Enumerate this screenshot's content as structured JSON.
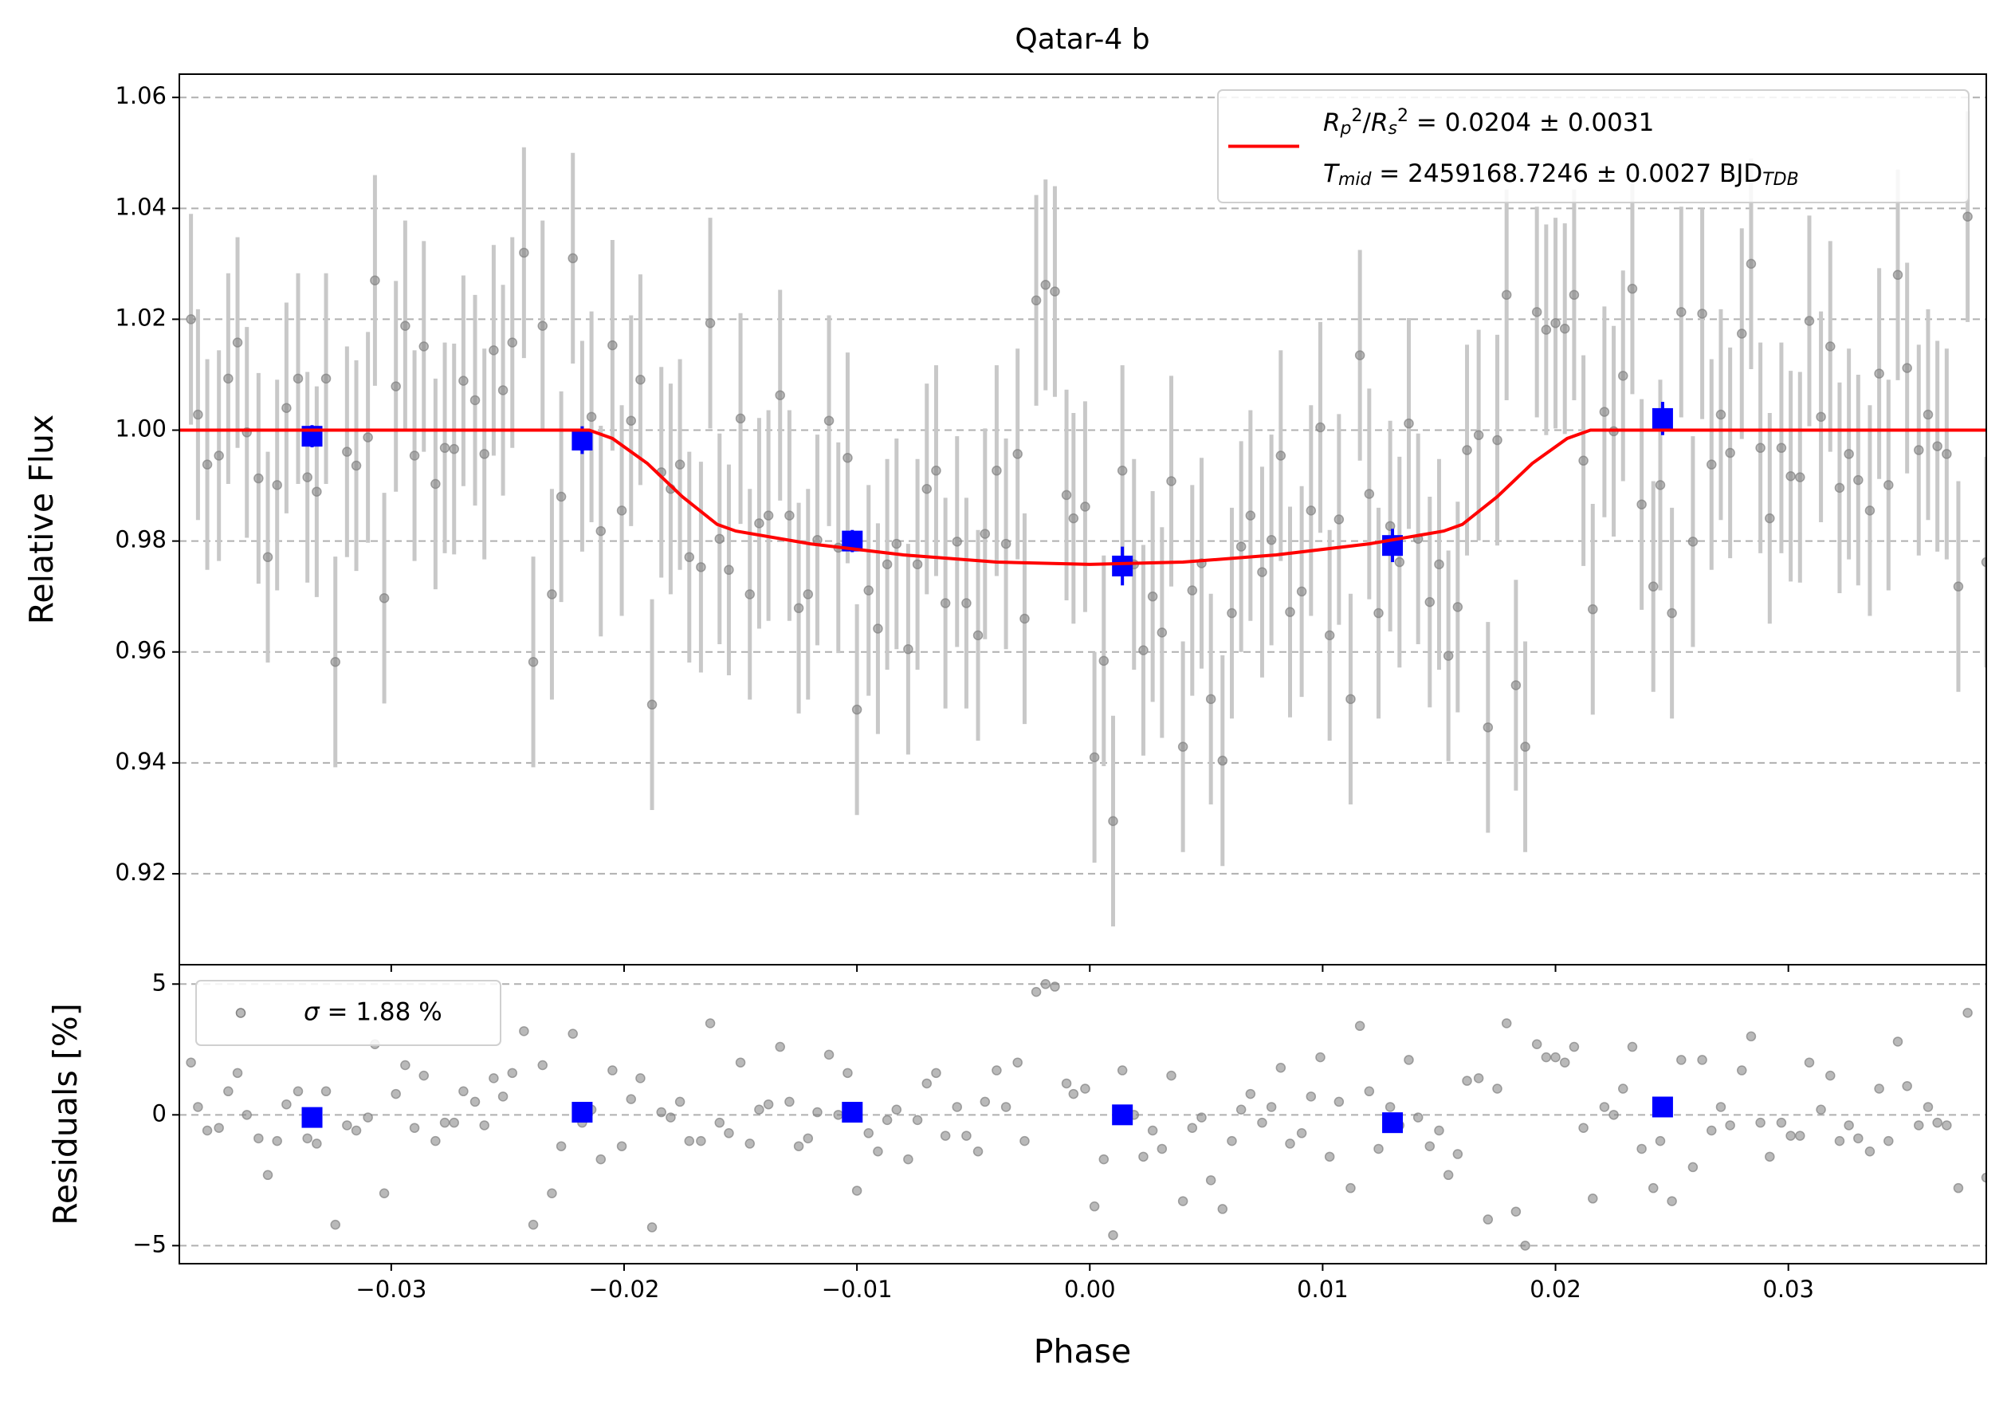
{
  "chart_data": {
    "type": "scatter",
    "title": "Qatar-4 b",
    "xlabel": "Phase",
    "xlim": [
      -0.0391,
      0.0385
    ],
    "xticks": [
      {
        "value": -0.03,
        "label": "−0.03"
      },
      {
        "value": -0.02,
        "label": "−0.02"
      },
      {
        "value": -0.01,
        "label": "−0.01"
      },
      {
        "value": 0,
        "label": "0.00"
      },
      0.01,
      0.02,
      0.03
    ],
    "grid": true,
    "panels": [
      {
        "ylabel": "Relative Flux",
        "ylim": [
          0.9036,
          1.0642
        ],
        "yticks": [
          0.92,
          0.94,
          0.96,
          0.98,
          {
            "value": 1,
            "label": "1.00"
          },
          1.02,
          1.04,
          1.06
        ],
        "legend": "upper right",
        "series": [
          {
            "marker": "circle",
            "color": "#808080",
            "error": 0.019,
            "x": [
              -0.0386,
              -0.0383,
              -0.0379,
              -0.0374,
              -0.037,
              -0.0366,
              -0.0362,
              -0.0357,
              -0.0353,
              -0.0349,
              -0.0345,
              -0.034,
              -0.0336,
              -0.0332,
              -0.0328,
              -0.0324,
              -0.0319,
              -0.0315,
              -0.031,
              -0.0307,
              -0.0303,
              -0.0298,
              -0.0294,
              -0.029,
              -0.0286,
              -0.0281,
              -0.0277,
              -0.0273,
              -0.0269,
              -0.0264,
              -0.026,
              -0.0256,
              -0.0252,
              -0.0248,
              -0.0243,
              -0.0239,
              -0.0235,
              -0.0231,
              -0.0227,
              -0.0222,
              -0.0218,
              -0.0214,
              -0.021,
              -0.0205,
              -0.0201,
              -0.0197,
              -0.0193,
              -0.0188,
              -0.0184,
              -0.018,
              -0.0176,
              -0.0172,
              -0.0167,
              -0.0163,
              -0.0159,
              -0.0155,
              -0.015,
              -0.0146,
              -0.0142,
              -0.0138,
              -0.0133,
              -0.0129,
              -0.0125,
              -0.0121,
              -0.0117,
              -0.0112,
              -0.0108,
              -0.0104,
              -0.01,
              -0.0095,
              -0.0091,
              -0.0087,
              -0.0083,
              -0.0078,
              -0.0074,
              -0.007,
              -0.0066,
              -0.0062,
              -0.0057,
              -0.0053,
              -0.0048,
              -0.0045,
              -0.004,
              -0.0036,
              -0.0031,
              -0.0028,
              -0.0023,
              -0.0019,
              -0.0015,
              -0.001,
              -0.0007,
              -0.0002,
              0.0002,
              0.0006,
              0.001,
              0.0014,
              0.0019,
              0.0023,
              0.0027,
              0.0031,
              0.0035,
              0.004,
              0.0044,
              0.0048,
              0.0052,
              0.0057,
              0.0061,
              0.0065,
              0.0069,
              0.0074,
              0.0078,
              0.0082,
              0.0086,
              0.0091,
              0.0095,
              0.0099,
              0.0103,
              0.0107,
              0.0112,
              0.0116,
              0.012,
              0.0124,
              0.0129,
              0.0133,
              0.0137,
              0.0141,
              0.0146,
              0.015,
              0.0154,
              0.0158,
              0.0162,
              0.0167,
              0.0171,
              0.0175,
              0.0179,
              0.0183,
              0.0187,
              0.0192,
              0.0196,
              0.02,
              0.0204,
              0.0208,
              0.0212,
              0.0216,
              0.0221,
              0.0225,
              0.0229,
              0.0233,
              0.0237,
              0.0242,
              0.0245,
              0.025,
              0.0254,
              0.0259,
              0.0263,
              0.0267,
              0.0271,
              0.0275,
              0.028,
              0.0284,
              0.0288,
              0.0292,
              0.0297,
              0.0301,
              0.0305,
              0.0309,
              0.0314,
              0.0318,
              0.0322,
              0.0326,
              0.033,
              0.0335,
              0.0339,
              0.0343,
              0.0347,
              0.0351,
              0.0356,
              0.036,
              0.0364,
              0.0368,
              0.0373,
              0.0377,
              0.0385
            ],
            "values": [
              1.02,
              1.0028,
              0.9938,
              0.9954,
              1.0093,
              1.0158,
              0.9996,
              0.9913,
              0.9771,
              0.9901,
              1.004,
              1.0093,
              0.9915,
              0.9889,
              1.0093,
              0.9582,
              0.9961,
              0.9936,
              0.9987,
              1.027,
              0.9697,
              1.0079,
              1.0188,
              0.9954,
              1.0151,
              0.9903,
              0.9968,
              0.9966,
              1.0089,
              1.0054,
              0.9957,
              1.0144,
              1.0072,
              1.0158,
              1.032,
              0.9582,
              1.0188,
              0.9704,
              0.988,
              1.031,
              0.9971,
              1.0024,
              0.9818,
              1.0153,
              0.9855,
              1.0017,
              1.0091,
              0.9505,
              0.9924,
              0.9894,
              0.9938,
              0.9771,
              0.9753,
              1.0193,
              0.9804,
              0.9748,
              1.0021,
              0.9704,
              0.9832,
              0.9846,
              1.0063,
              0.9846,
              0.9679,
              0.9704,
              0.9802,
              1.0017,
              0.9788,
              0.995,
              0.9496,
              0.9711,
              0.9642,
              0.9758,
              0.9795,
              0.9605,
              0.9758,
              0.9894,
              0.9927,
              0.9688,
              0.9799,
              0.9688,
              0.963,
              0.9813,
              0.9927,
              0.9795,
              0.9957,
              0.966,
              1.0234,
              1.0262,
              1.025,
              0.9883,
              0.9841,
              0.9862,
              0.941,
              0.9584,
              0.9295,
              0.9927,
              0.9758,
              0.9603,
              0.97,
              0.9635,
              0.9908,
              0.9429,
              0.9711,
              0.976,
              0.9515,
              0.9404,
              0.967,
              0.979,
              0.9846,
              0.9744,
              0.9802,
              0.9954,
              0.9672,
              0.9709,
              0.9855,
              1.0005,
              0.963,
              0.9839,
              0.9515,
              1.0135,
              0.9885,
              0.967,
              0.9827,
              0.9762,
              1.0012,
              0.9804,
              0.969,
              0.9758,
              0.9593,
              0.9681,
              0.9964,
              0.9991,
              0.9464,
              0.9982,
              1.0244,
              0.954,
              0.9429,
              1.0213,
              1.0181,
              1.0193,
              1.0183,
              1.0244,
              0.9945,
              0.9677,
              1.0033,
              0.9998,
              1.0098,
              1.0255,
              0.9866,
              0.9718,
              0.9901,
              0.967,
              1.0213,
              0.9799,
              1.021,
              0.9938,
              1.0028,
              0.9959,
              1.0174,
              1.03,
              0.9968,
              0.9841,
              0.9968,
              0.9917,
              0.9915,
              1.0197,
              1.0024,
              1.0151,
              0.9896,
              0.9957,
              0.991,
              0.9855,
              1.0102,
              0.9901,
              1.028,
              1.0112,
              0.9964,
              1.0028,
              0.9971,
              0.9957,
              0.9718,
              1.0385,
              0.9762
            ]
          },
          {
            "marker": "square",
            "color": "#0000ff",
            "x": [
              -0.0334,
              -0.0218,
              -0.0102,
              0.0014,
              0.013,
              0.0246
            ],
            "values": [
              0.9989,
              0.9982,
              0.98,
              0.9755,
              0.9792,
              1.0021
            ],
            "errors": [
              0.002,
              0.0025,
              0.002,
              0.0035,
              0.003,
              0.003
            ]
          },
          {
            "marker": "line",
            "color": "#ff0000",
            "name": [
              [
                {
                  "text": "R",
                  "style": "italic"
                },
                {
                  "text": "p",
                  "style": "sub italic"
                },
                {
                  "text": "2",
                  "style": "sup"
                },
                {
                  "text": "/"
                },
                {
                  "text": "R",
                  "style": "italic"
                },
                {
                  "text": "s",
                  "style": "sub italic"
                },
                {
                  "text": "2",
                  "style": "sup"
                },
                {
                  "text": " = 0.0204 ± 0.0031"
                }
              ],
              [
                {
                  "text": "T",
                  "style": "italic"
                },
                {
                  "text": "mid",
                  "style": "sub italic"
                },
                {
                  "text": " = 2459168.7246 ± 0.0027 BJD"
                },
                {
                  "text": "TDB",
                  "style": "sub italic"
                }
              ]
            ],
            "x": [
              -0.0391,
              -0.0215,
              -0.0205,
              -0.019,
              -0.0175,
              -0.016,
              -0.0152,
              -0.012,
              -0.008,
              -0.004,
              0,
              0.004,
              0.008,
              0.012,
              0.0152,
              0.016,
              0.0175,
              0.019,
              0.0205,
              0.0215,
              0.0385
            ],
            "values": [
              1,
              1,
              0.9985,
              0.994,
              0.988,
              0.983,
              0.9818,
              0.9795,
              0.9775,
              0.9762,
              0.9758,
              0.9762,
              0.9775,
              0.9795,
              0.9818,
              0.983,
              0.988,
              0.994,
              0.9985,
              1,
              1
            ]
          }
        ]
      },
      {
        "ylabel": "Residuals [%]",
        "ylim": [
          -5.69,
          5.74
        ],
        "yticks": [
          {
            "value": -5,
            "label": "−5"
          },
          0,
          5
        ],
        "legend": "upper left",
        "series": [
          {
            "marker": "circle",
            "color": "#808080",
            "x_from": 0,
            "name": [
              [
                {
                  "text": "σ",
                  "style": "italic"
                },
                {
                  "text": " = 1.88 %"
                }
              ]
            ],
            "values": [
              2.0,
              0.3,
              -0.6,
              -0.5,
              0.9,
              1.6,
              0.0,
              -0.9,
              -2.3,
              -1.0,
              0.4,
              0.9,
              -0.9,
              -1.1,
              0.9,
              -4.2,
              -0.4,
              -0.6,
              -0.1,
              2.7,
              -3.0,
              0.8,
              1.9,
              -0.5,
              1.5,
              -1.0,
              -0.3,
              -0.3,
              0.9,
              0.5,
              -0.4,
              1.4,
              0.7,
              1.6,
              3.2,
              -4.2,
              1.9,
              -3.0,
              -1.2,
              3.1,
              -0.3,
              0.2,
              -1.7,
              1.7,
              -1.2,
              0.6,
              1.4,
              -4.3,
              0.1,
              -0.1,
              0.5,
              -1.0,
              -1.0,
              3.5,
              -0.3,
              -0.7,
              2.0,
              -1.1,
              0.2,
              0.4,
              2.6,
              0.5,
              -1.2,
              -0.9,
              0.1,
              2.3,
              0.0,
              1.6,
              -2.9,
              -0.7,
              -1.4,
              -0.2,
              0.2,
              -1.7,
              -0.2,
              1.2,
              1.6,
              -0.8,
              0.3,
              -0.8,
              -1.4,
              0.5,
              1.7,
              0.3,
              2.0,
              -1.0,
              4.7,
              5.0,
              4.9,
              1.2,
              0.8,
              1.0,
              -3.5,
              -1.7,
              -4.6,
              1.7,
              0.0,
              -1.6,
              -0.6,
              -1.3,
              1.5,
              -3.3,
              -0.5,
              -0.1,
              -2.5,
              -3.6,
              -1.0,
              0.2,
              0.8,
              -0.3,
              0.3,
              1.8,
              -1.1,
              -0.7,
              0.7,
              2.2,
              -1.6,
              0.5,
              -2.8,
              3.4,
              0.9,
              -1.3,
              0.3,
              -0.4,
              2.1,
              -0.1,
              -1.2,
              -0.6,
              -2.3,
              -1.5,
              1.3,
              1.4,
              -4.0,
              1.0,
              3.5,
              -3.7,
              -5.0,
              2.7,
              2.2,
              2.2,
              2.0,
              2.6,
              -0.5,
              -3.2,
              0.3,
              0.0,
              1.0,
              2.6,
              -1.3,
              -2.8,
              -1.0,
              -3.3,
              2.1,
              -2.0,
              2.1,
              -0.6,
              0.3,
              -0.4,
              1.7,
              3.0,
              -0.3,
              -1.6,
              -0.3,
              -0.8,
              -0.8,
              2.0,
              0.2,
              1.5,
              -1.0,
              -0.4,
              -0.9,
              -1.4,
              1.0,
              -1.0,
              2.8,
              1.1,
              -0.4,
              0.3,
              -0.3,
              -0.4,
              -2.8,
              3.9,
              -2.4
            ]
          },
          {
            "marker": "square",
            "color": "#0000ff",
            "x_from": 1,
            "values": [
              -0.1,
              0.1,
              0.1,
              0.0,
              -0.3,
              0.3
            ]
          }
        ]
      }
    ]
  }
}
